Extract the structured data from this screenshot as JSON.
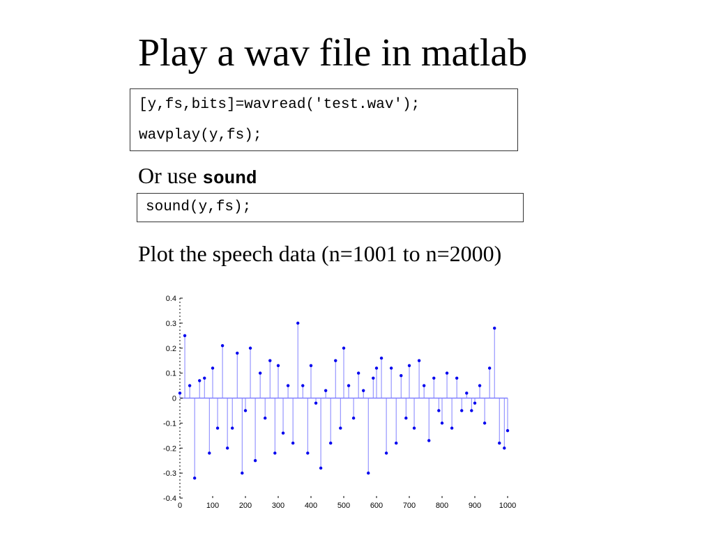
{
  "slide": {
    "title": "Play a wav file in matlab",
    "code1": {
      "line1": "[y,fs,bits]=wavread('test.wav');",
      "line2": "wavplay(y,fs);"
    },
    "or_use_text": "Or use ",
    "or_use_code": "sound",
    "code2": {
      "line1": "sound(y,fs);"
    },
    "plot_text": "Plot the speech data (n=1001 to n=2000)"
  },
  "colors": {
    "stem": "#8080ff",
    "marker": "#0000ee",
    "axis": "#000000"
  },
  "chart_data": {
    "type": "stem",
    "title": "",
    "xlabel": "",
    "ylabel": "",
    "xlim": [
      0,
      1000
    ],
    "ylim": [
      -0.4,
      0.4
    ],
    "x_ticks": [
      0,
      100,
      200,
      300,
      400,
      500,
      600,
      700,
      800,
      900,
      1000
    ],
    "x_tick_labels": [
      "0",
      "100",
      "200",
      "300",
      "400",
      "500",
      "600",
      "700",
      "800",
      "900",
      "1000"
    ],
    "y_ticks": [
      0.4,
      0.3,
      0.2,
      0.1,
      0,
      -0.1,
      -0.2,
      -0.3,
      -0.4
    ],
    "y_tick_labels": [
      "0.4",
      "0.3",
      "0.2",
      "0.1",
      "0",
      "-0.1",
      "-0.2",
      "-0.3",
      "-0.4"
    ],
    "grid": false,
    "series": [
      {
        "x": [
          0,
          15,
          30,
          45,
          60,
          75,
          90,
          100,
          115,
          130,
          145,
          160,
          175,
          190,
          200,
          215,
          230,
          245,
          260,
          275,
          290,
          300,
          315,
          330,
          345,
          360,
          375,
          390,
          400,
          415,
          430,
          445,
          460,
          475,
          490,
          500,
          515,
          530,
          545,
          560,
          575,
          590,
          600,
          615,
          630,
          645,
          660,
          675,
          690,
          700,
          715,
          730,
          745,
          760,
          775,
          790,
          800,
          815,
          830,
          845,
          860,
          875,
          890,
          900,
          915,
          930,
          945,
          960,
          975,
          990,
          1000
        ],
        "y": [
          0.02,
          0.25,
          0.05,
          -0.32,
          0.07,
          0.08,
          -0.22,
          0.12,
          -0.12,
          0.21,
          -0.2,
          -0.12,
          0.18,
          -0.3,
          -0.05,
          0.2,
          -0.25,
          0.1,
          -0.08,
          0.15,
          -0.22,
          0.13,
          -0.14,
          0.05,
          -0.18,
          0.3,
          0.05,
          -0.22,
          0.13,
          -0.02,
          -0.28,
          0.03,
          -0.18,
          0.15,
          -0.12,
          0.2,
          0.05,
          -0.08,
          0.1,
          0.03,
          -0.3,
          0.08,
          0.12,
          0.16,
          -0.22,
          0.12,
          -0.18,
          0.09,
          -0.08,
          0.13,
          -0.12,
          0.15,
          0.05,
          -0.17,
          0.08,
          -0.05,
          -0.1,
          0.1,
          -0.12,
          0.08,
          -0.05,
          0.02,
          -0.05,
          -0.02,
          0.05,
          -0.1,
          0.12,
          0.28,
          -0.18,
          -0.2,
          -0.13
        ]
      }
    ]
  }
}
